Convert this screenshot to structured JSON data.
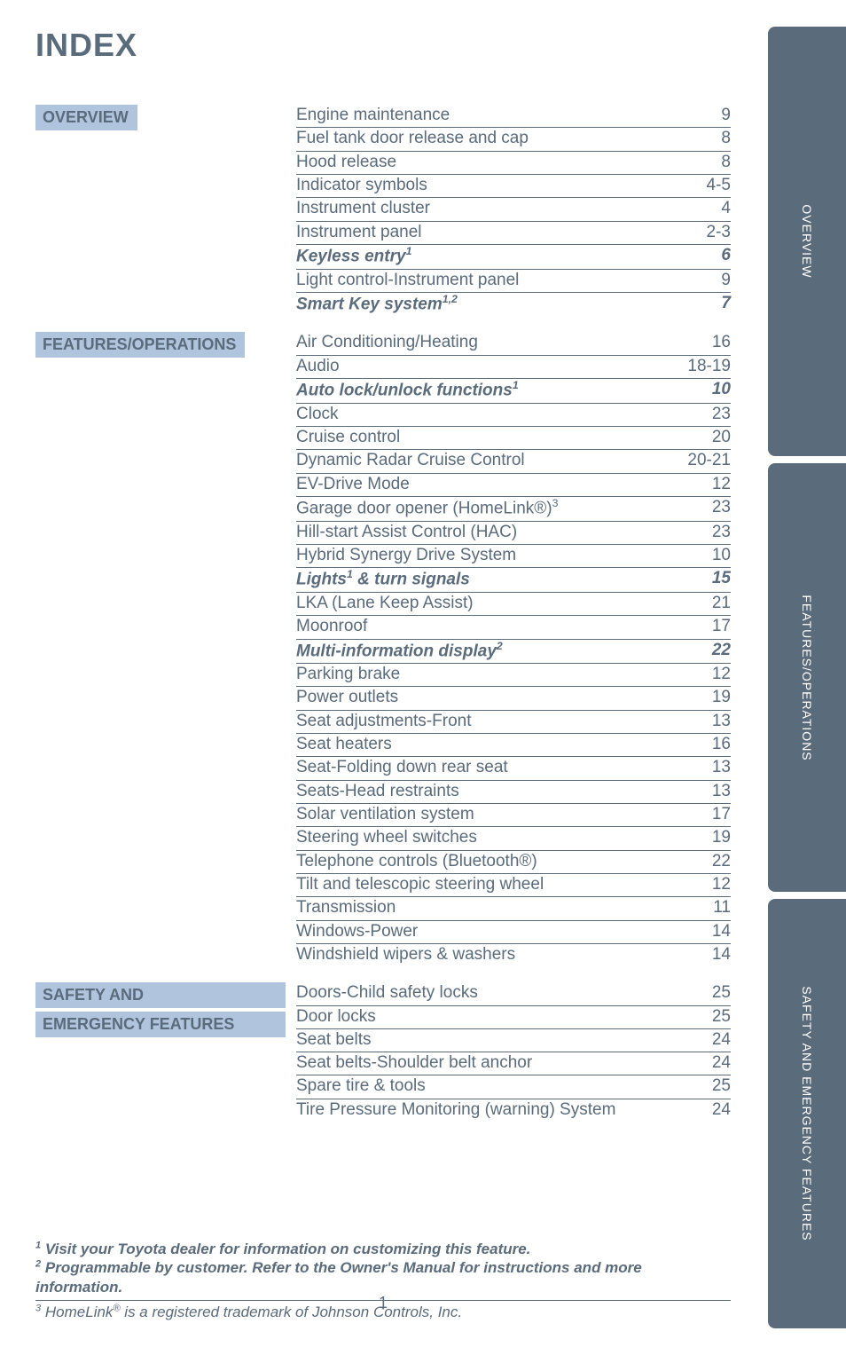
{
  "title": "INDEX",
  "page_number": "1",
  "colors": {
    "text": "#5a6b7b",
    "section_bg": "#b0c4de",
    "tab_bg": "#5a6b7b",
    "tab_text": "#ffffff",
    "rule": "#5a6b7b",
    "page_bg": "#ffffff"
  },
  "typography": {
    "title_fontsize": 36,
    "section_fontsize": 18,
    "entry_fontsize": 19,
    "footnote_fontsize": 17,
    "tab_fontsize": 14
  },
  "side_tabs": [
    {
      "label": "OVERVIEW"
    },
    {
      "label": "FEATURES/OPERATIONS"
    },
    {
      "label": "SAFETY AND EMERGENCY FEATURES"
    }
  ],
  "sections": [
    {
      "id": "overview",
      "heading": "OVERVIEW",
      "entries": [
        {
          "label": "Engine maintenance",
          "page": "9"
        },
        {
          "label": "Fuel tank door release and cap",
          "page": "8"
        },
        {
          "label": "Hood release",
          "page": "8"
        },
        {
          "label": "Indicator symbols",
          "page": "4-5"
        },
        {
          "label": "Instrument cluster",
          "page": "4"
        },
        {
          "label": "Instrument panel",
          "page": "2-3"
        },
        {
          "label": "Keyless entry",
          "sup": "1",
          "page": "6",
          "italic": true
        },
        {
          "label": "Light control-Instrument panel",
          "page": "9"
        },
        {
          "label": "Smart Key system",
          "sup": "1,2",
          "page": "7",
          "italic": true
        }
      ]
    },
    {
      "id": "features",
      "heading": "FEATURES/OPERATIONS",
      "entries": [
        {
          "label": "Air Conditioning/Heating",
          "page": "16"
        },
        {
          "label": "Audio",
          "page": "18-19"
        },
        {
          "label": "Auto lock/unlock functions",
          "sup": "1",
          "page": "10",
          "italic": true
        },
        {
          "label": "Clock",
          "page": "23"
        },
        {
          "label": "Cruise control",
          "page": "20"
        },
        {
          "label": "Dynamic Radar Cruise Control",
          "page": "20-21"
        },
        {
          "label": "EV-Drive Mode",
          "page": "12"
        },
        {
          "label": "Garage door opener (HomeLink®)",
          "sup": "3",
          "page": "23"
        },
        {
          "label": "Hill-start Assist Control (HAC)",
          "page": "23"
        },
        {
          "label": "Hybrid Synergy Drive System",
          "page": "10"
        },
        {
          "label": "Lights",
          "sup": "1",
          "label_after": " & turn signals",
          "page": "15",
          "italic": true
        },
        {
          "label": "LKA (Lane Keep Assist)",
          "page": "21"
        },
        {
          "label": "Moonroof",
          "page": "17"
        },
        {
          "label": "Multi-information display",
          "sup": "2",
          "page": "22",
          "italic": true
        },
        {
          "label": "Parking brake",
          "page": "12"
        },
        {
          "label": "Power outlets",
          "page": "19"
        },
        {
          "label": "Seat adjustments-Front",
          "page": "13"
        },
        {
          "label": "Seat heaters",
          "page": "16"
        },
        {
          "label": "Seat-Folding down rear seat",
          "page": "13"
        },
        {
          "label": "Seats-Head restraints",
          "page": "13"
        },
        {
          "label": "Solar ventilation system",
          "page": "17"
        },
        {
          "label": "Steering wheel switches",
          "page": "19"
        },
        {
          "label": "Telephone controls (Bluetooth®)",
          "page": "22"
        },
        {
          "label": "Tilt and telescopic steering wheel",
          "page": "12"
        },
        {
          "label": "Transmission",
          "page": "11"
        },
        {
          "label": "Windows-Power",
          "page": "14"
        },
        {
          "label": "Windshield wipers & washers",
          "page": "14"
        }
      ]
    },
    {
      "id": "safety",
      "heading_line1": "SAFETY AND",
      "heading_line2": "EMERGENCY FEATURES",
      "entries": [
        {
          "label": "Doors-Child safety locks",
          "page": "25"
        },
        {
          "label": "Door locks",
          "page": "25"
        },
        {
          "label": "Seat belts",
          "page": "24"
        },
        {
          "label": "Seat belts-Shoulder belt anchor",
          "page": "24"
        },
        {
          "label": "Spare tire & tools",
          "page": "25"
        },
        {
          "label": "Tire Pressure Monitoring (warning) System",
          "page": "24"
        }
      ]
    }
  ],
  "footnotes": {
    "fn1_sup": "1",
    "fn1": "Visit your Toyota dealer for information on customizing this feature.",
    "fn2_sup": "2",
    "fn2": "Programmable by customer. Refer to the Owner's Manual for instructions and more information.",
    "fn3_sup": "3",
    "fn3_pre": "HomeLink",
    "fn3_reg": "®",
    "fn3_post": " is a registered trademark of Johnson Controls, Inc."
  }
}
